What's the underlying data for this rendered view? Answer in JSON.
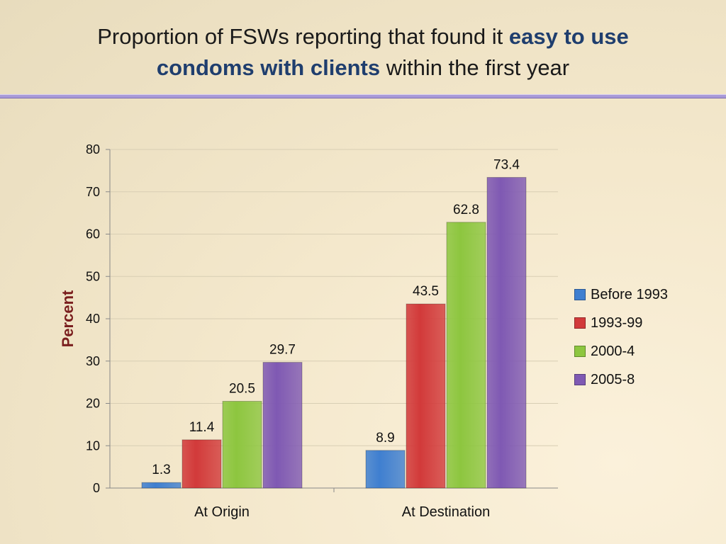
{
  "title": {
    "part1": "Proportion of FSWs reporting that found it ",
    "highlight1": "easy to use",
    "highlight2": "condoms with clients",
    "part2": " within the first year"
  },
  "colors": {
    "highlight": "#1f3e6e",
    "ylabel": "#7a1e1e",
    "divider": "#a99ad8"
  },
  "chart_data": {
    "type": "bar",
    "categories": [
      "At Origin",
      "At Destination"
    ],
    "series": [
      {
        "name": "Before 1993",
        "values": [
          1.3,
          8.9
        ],
        "color": "#3f7fd0"
      },
      {
        "name": "1993-99",
        "values": [
          11.4,
          43.5
        ],
        "color": "#d23a3a"
      },
      {
        "name": "2000-4",
        "values": [
          20.5,
          62.8
        ],
        "color": "#8dc63f"
      },
      {
        "name": "2005-8",
        "values": [
          29.7,
          73.4
        ],
        "color": "#7f59b3"
      }
    ],
    "ylabel": "Percent",
    "ylim": [
      0,
      80
    ],
    "yticks": [
      0,
      10,
      20,
      30,
      40,
      50,
      60,
      70,
      80
    ],
    "grid": true,
    "legend_position": "right"
  }
}
